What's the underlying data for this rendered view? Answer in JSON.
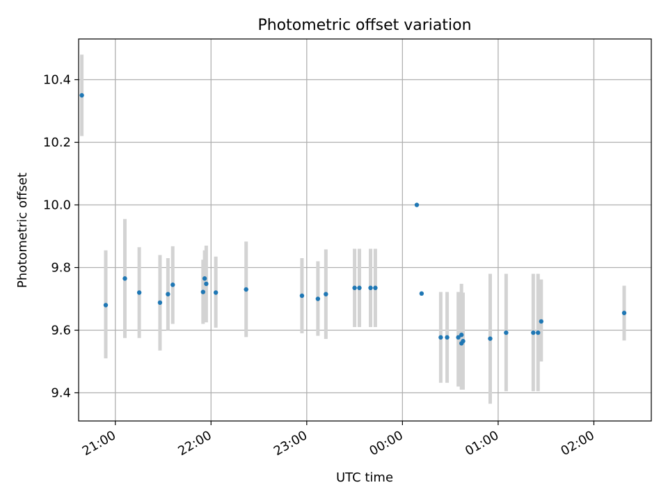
{
  "chart_data": {
    "type": "scatter",
    "title": "Photometric offset variation",
    "xlabel": "UTC time",
    "ylabel": "Photometric offset",
    "x_is_time": true,
    "xlim": [
      "20:37",
      "02:36"
    ],
    "ylim": [
      9.31,
      10.53
    ],
    "x_ticks": [
      {
        "t": "21:00",
        "label": "21:00"
      },
      {
        "t": "22:00",
        "label": "22:00"
      },
      {
        "t": "23:00",
        "label": "23:00"
      },
      {
        "t": "00:00",
        "label": "00:00"
      },
      {
        "t": "01:00",
        "label": "01:00"
      },
      {
        "t": "02:00",
        "label": "02:00"
      }
    ],
    "y_ticks": [
      {
        "v": 9.4,
        "label": "9.4"
      },
      {
        "v": 9.6,
        "label": "9.6"
      },
      {
        "v": 9.8,
        "label": "9.8"
      },
      {
        "v": 10.0,
        "label": "10.0"
      },
      {
        "v": 10.2,
        "label": "10.2"
      },
      {
        "v": 10.4,
        "label": "10.4"
      }
    ],
    "grid": true,
    "colors": {
      "points": "#1f77b4",
      "errorbars": "#d3d3d3",
      "grid": "#b0b0b0"
    },
    "series": [
      {
        "points": [
          {
            "t": "20:39",
            "y": 10.35,
            "lo": 10.22,
            "hi": 10.48
          },
          {
            "t": "20:54",
            "y": 9.68,
            "lo": 9.51,
            "hi": 9.855
          },
          {
            "t": "21:06",
            "y": 9.765,
            "lo": 9.575,
            "hi": 9.955
          },
          {
            "t": "21:15",
            "y": 9.72,
            "lo": 9.575,
            "hi": 9.865
          },
          {
            "t": "21:28",
            "y": 9.688,
            "lo": 9.535,
            "hi": 9.84
          },
          {
            "t": "21:33",
            "y": 9.715,
            "lo": 9.6,
            "hi": 9.83
          },
          {
            "t": "21:36",
            "y": 9.745,
            "lo": 9.62,
            "hi": 9.868
          },
          {
            "t": "21:55",
            "y": 9.722,
            "lo": 9.62,
            "hi": 9.825
          },
          {
            "t": "21:56",
            "y": 9.765,
            "lo": 9.675,
            "hi": 9.855
          },
          {
            "t": "21:57",
            "y": 9.748,
            "lo": 9.625,
            "hi": 9.87
          },
          {
            "t": "22:03",
            "y": 9.72,
            "lo": 9.608,
            "hi": 9.835
          },
          {
            "t": "22:22",
            "y": 9.73,
            "lo": 9.578,
            "hi": 9.883
          },
          {
            "t": "22:57",
            "y": 9.71,
            "lo": 9.59,
            "hi": 9.83
          },
          {
            "t": "23:07",
            "y": 9.7,
            "lo": 9.582,
            "hi": 9.82
          },
          {
            "t": "23:12",
            "y": 9.715,
            "lo": 9.572,
            "hi": 9.858
          },
          {
            "t": "23:30",
            "y": 9.735,
            "lo": 9.61,
            "hi": 9.86
          },
          {
            "t": "23:33",
            "y": 9.735,
            "lo": 9.61,
            "hi": 9.86
          },
          {
            "t": "23:40",
            "y": 9.735,
            "lo": 9.61,
            "hi": 9.86
          },
          {
            "t": "23:43",
            "y": 9.735,
            "lo": 9.61,
            "hi": 9.86
          },
          {
            "t": "00:09",
            "y": 10.0,
            "lo": 10.0,
            "hi": 10.0
          },
          {
            "t": "00:12",
            "y": 9.717,
            "lo": 9.717,
            "hi": 9.717
          },
          {
            "t": "00:24",
            "y": 9.577,
            "lo": 9.432,
            "hi": 9.722
          },
          {
            "t": "00:28",
            "y": 9.577,
            "lo": 9.432,
            "hi": 9.722
          },
          {
            "t": "00:35",
            "y": 9.577,
            "lo": 9.42,
            "hi": 9.722
          },
          {
            "t": "00:37",
            "y": 9.585,
            "lo": 9.42,
            "hi": 9.748
          },
          {
            "t": "00:37",
            "y": 9.558,
            "lo": 9.41,
            "hi": 9.72
          },
          {
            "t": "00:38",
            "y": 9.565,
            "lo": 9.41,
            "hi": 9.72
          },
          {
            "t": "00:55",
            "y": 9.573,
            "lo": 9.365,
            "hi": 9.78
          },
          {
            "t": "01:05",
            "y": 9.592,
            "lo": 9.405,
            "hi": 9.78
          },
          {
            "t": "01:22",
            "y": 9.592,
            "lo": 9.405,
            "hi": 9.78
          },
          {
            "t": "01:25",
            "y": 9.592,
            "lo": 9.405,
            "hi": 9.78
          },
          {
            "t": "01:27",
            "y": 9.628,
            "lo": 9.5,
            "hi": 9.762
          },
          {
            "t": "02:19",
            "y": 9.655,
            "lo": 9.567,
            "hi": 9.742
          }
        ]
      }
    ]
  }
}
